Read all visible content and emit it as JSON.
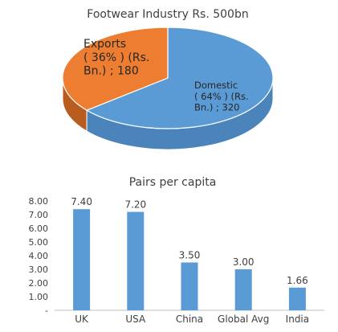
{
  "colors": {
    "domestic": "#5b9bd5",
    "domestic_side": "#4a84ba",
    "exports": "#ed7d31",
    "exports_side": "#b85d1f",
    "bar": "#5b9bd5",
    "text": "#404040",
    "axis": "#bfbfbf"
  },
  "chart_data": [
    {
      "type": "pie",
      "title": "Footwear Industry Rs. 500bn",
      "style": "3d",
      "slices": [
        {
          "name": "Domestic",
          "value": 320,
          "percent": 64,
          "label_lines": [
            "Domestic",
            "( 64%   ) (Rs.",
            "Bn.)  ;  320"
          ]
        },
        {
          "name": "Exports",
          "value": 180,
          "percent": 36,
          "label_lines": [
            "Exports",
            "( 36%  ) (Rs.",
            "Bn.)  ;  180"
          ]
        }
      ]
    },
    {
      "type": "bar",
      "title": "Pairs per capita",
      "categories": [
        "UK",
        "USA",
        "China",
        "Global Avg",
        "India"
      ],
      "values": [
        7.4,
        7.2,
        3.5,
        3.0,
        1.66
      ],
      "data_labels": [
        "7.40",
        "7.20",
        "3.50",
        "3.00",
        "1.66"
      ],
      "ylim": [
        0,
        8
      ],
      "yticks": [
        "-",
        "1.00",
        "2.00",
        "3.00",
        "4.00",
        "5.00",
        "6.00",
        "7.00",
        "8.00"
      ],
      "grid": false,
      "legend": "none"
    }
  ]
}
